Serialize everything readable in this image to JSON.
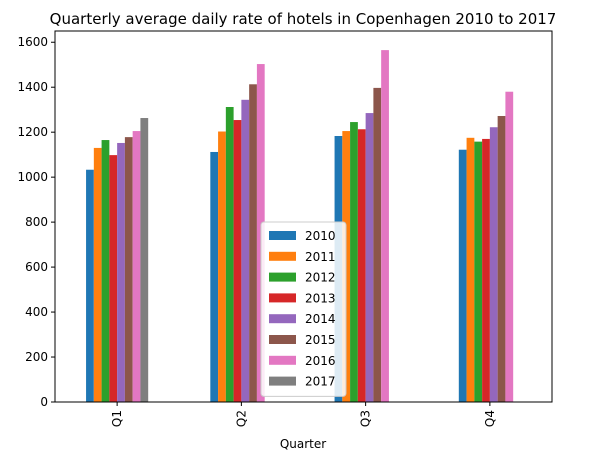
{
  "chart_data": {
    "type": "bar",
    "title": "Quarterly average daily rate of hotels in Copenhagen 2010 to 2017",
    "xlabel": "Quarter",
    "ylabel": "",
    "categories": [
      "Q1",
      "Q2",
      "Q3",
      "Q4"
    ],
    "ylim": [
      0,
      1650
    ],
    "yticks": [
      0,
      200,
      400,
      600,
      800,
      1000,
      1200,
      1400,
      1600
    ],
    "grid": false,
    "legend_position": "bottom-center",
    "series": [
      {
        "name": "2010",
        "color": "#1f77b4",
        "values": [
          1033,
          1112,
          1183,
          1122
        ]
      },
      {
        "name": "2011",
        "color": "#ff7f0e",
        "values": [
          1130,
          1203,
          1205,
          1175
        ]
      },
      {
        "name": "2012",
        "color": "#2ca02c",
        "values": [
          1165,
          1312,
          1245,
          1158
        ]
      },
      {
        "name": "2013",
        "color": "#d62728",
        "values": [
          1098,
          1254,
          1213,
          1170
        ]
      },
      {
        "name": "2014",
        "color": "#9467bd",
        "values": [
          1152,
          1344,
          1285,
          1222
        ]
      },
      {
        "name": "2015",
        "color": "#8c564b",
        "values": [
          1178,
          1413,
          1397,
          1272
        ]
      },
      {
        "name": "2016",
        "color": "#e377c2",
        "values": [
          1205,
          1503,
          1565,
          1380
        ]
      },
      {
        "name": "2017",
        "color": "#7f7f7f",
        "values": [
          1263,
          null,
          null,
          null
        ]
      }
    ]
  }
}
